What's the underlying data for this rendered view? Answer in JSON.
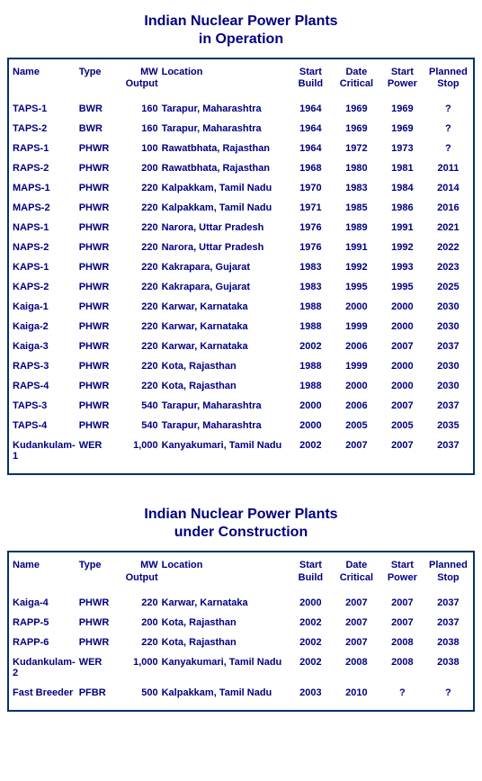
{
  "title_color": "#000080",
  "text_color": "#000080",
  "border_color": "#003366",
  "background_color": "#ffffff",
  "font_family": "Arial, Helvetica, sans-serif",
  "title_fontsize": 16,
  "table_fontsize": 11,
  "tables": [
    {
      "title_line1": "Indian Nuclear Power Plants",
      "title_line2": "in Operation",
      "columns": [
        "Name",
        "Type",
        "MW\nOutput",
        "Location",
        "Start\nBuild",
        "Date\nCritical",
        "Start\nPower",
        "Planned\nStop"
      ],
      "col_align": [
        "left",
        "left",
        "right",
        "left",
        "center",
        "center",
        "center",
        "center"
      ],
      "rows": [
        [
          "TAPS-1",
          "BWR",
          "160",
          "Tarapur, Maharashtra",
          "1964",
          "1969",
          "1969",
          "?"
        ],
        [
          "TAPS-2",
          "BWR",
          "160",
          "Tarapur, Maharashtra",
          "1964",
          "1969",
          "1969",
          "?"
        ],
        [
          "RAPS-1",
          "PHWR",
          "100",
          "Rawatbhata, Rajasthan",
          "1964",
          "1972",
          "1973",
          "?"
        ],
        [
          "RAPS-2",
          "PHWR",
          "200",
          "Rawatbhata, Rajasthan",
          "1968",
          "1980",
          "1981",
          "2011"
        ],
        [
          "MAPS-1",
          "PHWR",
          "220",
          "Kalpakkam, Tamil Nadu",
          "1970",
          "1983",
          "1984",
          "2014"
        ],
        [
          "MAPS-2",
          "PHWR",
          "220",
          "Kalpakkam, Tamil Nadu",
          "1971",
          "1985",
          "1986",
          "2016"
        ],
        [
          "NAPS-1",
          "PHWR",
          "220",
          "Narora, Uttar Pradesh",
          "1976",
          "1989",
          "1991",
          "2021"
        ],
        [
          "NAPS-2",
          "PHWR",
          "220",
          "Narora, Uttar Pradesh",
          "1976",
          "1991",
          "1992",
          "2022"
        ],
        [
          "KAPS-1",
          "PHWR",
          "220",
          "Kakrapara, Gujarat",
          "1983",
          "1992",
          "1993",
          "2023"
        ],
        [
          "KAPS-2",
          "PHWR",
          "220",
          "Kakrapara, Gujarat",
          "1983",
          "1995",
          "1995",
          "2025"
        ],
        [
          "Kaiga-1",
          "PHWR",
          "220",
          "Karwar, Karnataka",
          "1988",
          "2000",
          "2000",
          "2030"
        ],
        [
          "Kaiga-2",
          "PHWR",
          "220",
          "Karwar, Karnataka",
          "1988",
          "1999",
          "2000",
          "2030"
        ],
        [
          "Kaiga-3",
          "PHWR",
          "220",
          "Karwar, Karnataka",
          "2002",
          "2006",
          "2007",
          "2037"
        ],
        [
          "RAPS-3",
          "PHWR",
          "220",
          "Kota, Rajasthan",
          "1988",
          "1999",
          "2000",
          "2030"
        ],
        [
          "RAPS-4",
          "PHWR",
          "220",
          "Kota, Rajasthan",
          "1988",
          "2000",
          "2000",
          "2030"
        ],
        [
          "TAPS-3",
          "PHWR",
          "540",
          "Tarapur, Maharashtra",
          "2000",
          "2006",
          "2007",
          "2037"
        ],
        [
          "TAPS-4",
          "PHWR",
          "540",
          "Tarapur, Maharashtra",
          "2000",
          "2005",
          "2005",
          "2035"
        ],
        [
          "Kudankulam-1",
          "WER",
          "1,000",
          "Kanyakumari, Tamil Nadu",
          "2002",
          "2007",
          "2007",
          "2037"
        ]
      ]
    },
    {
      "title_line1": "Indian Nuclear Power Plants",
      "title_line2": "under Construction",
      "columns": [
        "Name",
        "Type",
        "MW\nOutput",
        "Location",
        "Start\nBuild",
        "Date\nCritical",
        "Start\nPower",
        "Planned\nStop"
      ],
      "col_align": [
        "left",
        "left",
        "right",
        "left",
        "center",
        "center",
        "center",
        "center"
      ],
      "rows": [
        [
          "Kaiga-4",
          "PHWR",
          "220",
          "Karwar, Karnataka",
          "2000",
          "2007",
          "2007",
          "2037"
        ],
        [
          "RAPP-5",
          "PHWR",
          "200",
          "Kota, Rajasthan",
          "2002",
          "2007",
          "2007",
          "2037"
        ],
        [
          "RAPP-6",
          "PHWR",
          "220",
          "Kota, Rajasthan",
          "2002",
          "2007",
          "2008",
          "2038"
        ],
        [
          "Kudankulam-2",
          "WER",
          "1,000",
          "Kanyakumari, Tamil Nadu",
          "2002",
          "2008",
          "2008",
          "2038"
        ],
        [
          "Fast Breeder",
          "PFBR",
          "500",
          "Kalpakkam, Tamil Nadu",
          "2003",
          "2010",
          "?",
          "?"
        ]
      ]
    }
  ]
}
